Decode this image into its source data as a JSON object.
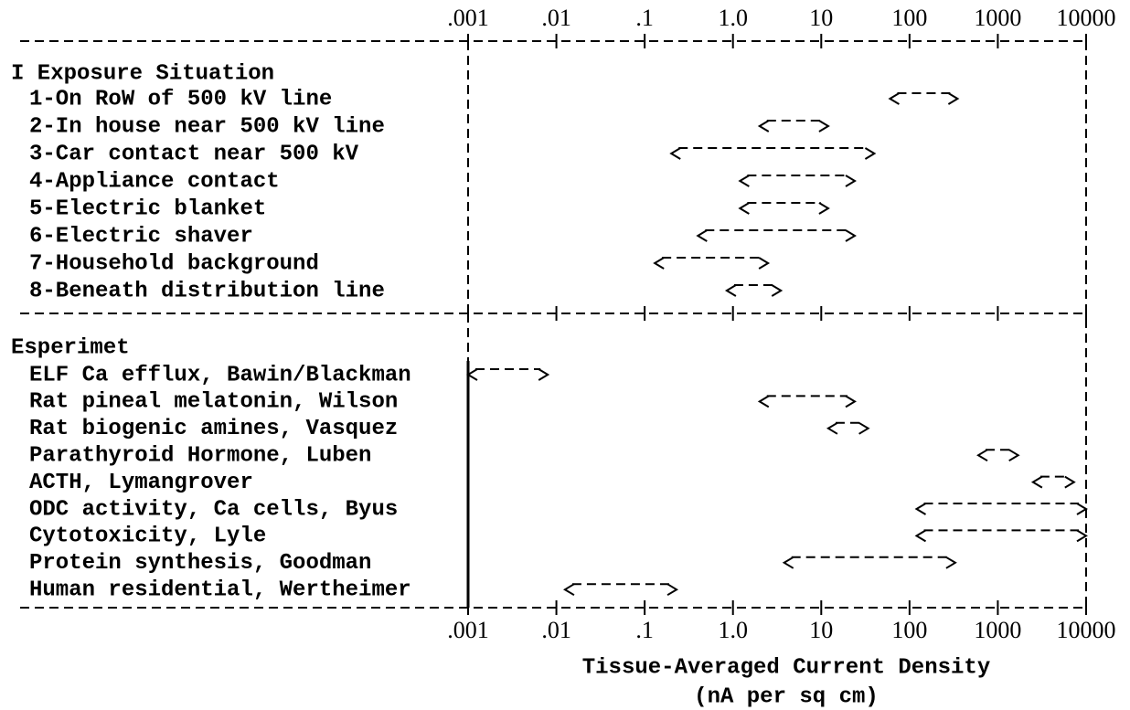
{
  "chart_data": {
    "type": "range",
    "xlog": true,
    "xlim": [
      0.001,
      10000
    ],
    "xticks": [
      {
        "value": 0.001,
        "label": ".001"
      },
      {
        "value": 0.01,
        "label": ".01"
      },
      {
        "value": 0.1,
        "label": ".1"
      },
      {
        "value": 1,
        "label": "1.0"
      },
      10,
      100,
      1000,
      10000
    ],
    "xlabel": "Tissue-Averaged Current Density",
    "xlabel_units": "(nA per sq cm)",
    "groups": [
      {
        "title": "I Exposure Situation",
        "rows": [
          {
            "label": "1-On RoW of 500 kV line",
            "low": 60,
            "high": 350
          },
          {
            "label": "2-In house near 500 kV line",
            "low": 2,
            "high": 12
          },
          {
            "label": "3-Car contact near 500 kV",
            "low": 0.2,
            "high": 40
          },
          {
            "label": "4-Appliance contact",
            "low": 1.2,
            "high": 24
          },
          {
            "label": "5-Electric blanket",
            "low": 1.2,
            "high": 12
          },
          {
            "label": "6-Electric shaver",
            "low": 0.4,
            "high": 24
          },
          {
            "label": "7-Household background",
            "low": 0.13,
            "high": 2.5
          },
          {
            "label": "8-Beneath distribution line",
            "low": 0.85,
            "high": 3.5
          }
        ]
      },
      {
        "title": "Esperimet",
        "rows": [
          {
            "label": "ELF Ca efflux, Bawin/Blackman",
            "low": 0.001,
            "high": 0.008
          },
          {
            "label": "Rat pineal melatonin, Wilson",
            "low": 2,
            "high": 24
          },
          {
            "label": "Rat biogenic amines, Vasquez",
            "low": 12,
            "high": 34
          },
          {
            "label": "Parathyroid Hormone, Luben",
            "low": 600,
            "high": 1700
          },
          {
            "label": "ACTH, Lymangrover",
            "low": 2500,
            "high": 7300
          },
          {
            "label": "ODC activity, Ca cells, Byus",
            "low": 120,
            "high": 10000
          },
          {
            "label": "Cytotoxicity, Lyle",
            "low": 120,
            "high": 10000
          },
          {
            "label": "Protein synthesis, Goodman",
            "low": 3.8,
            "high": 330
          },
          {
            "label": "Human residential, Wertheimer",
            "low": 0.0125,
            "high": 0.23
          }
        ]
      }
    ]
  }
}
